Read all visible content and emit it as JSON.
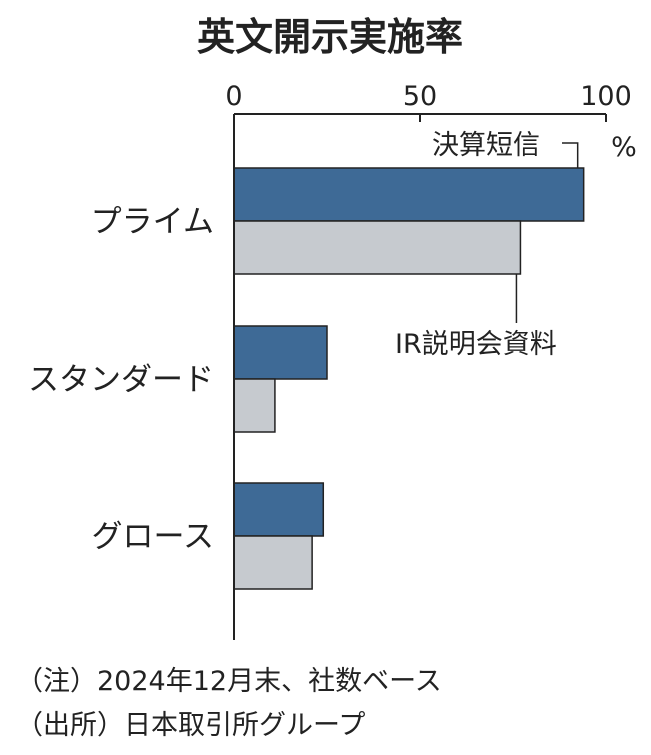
{
  "chart_data": {
    "type": "bar",
    "orientation": "horizontal",
    "title": "英文開示実施率",
    "unit": "%",
    "xlim": [
      0,
      100
    ],
    "ticks": [
      0,
      50,
      100
    ],
    "categories": [
      "プライム",
      "スタンダード",
      "グロース"
    ],
    "series": [
      {
        "name": "決算短信",
        "values": [
          94,
          25,
          24
        ],
        "color": "#3e6a96"
      },
      {
        "name": "IR説明会資料",
        "values": [
          77,
          11,
          21
        ],
        "color": "#c6cacf"
      }
    ],
    "grid": false,
    "legend": "direct-labels"
  },
  "notes": {
    "note": "（注）2024年12月末、社数ベース",
    "source": "（出所）日本取引所グループ"
  }
}
